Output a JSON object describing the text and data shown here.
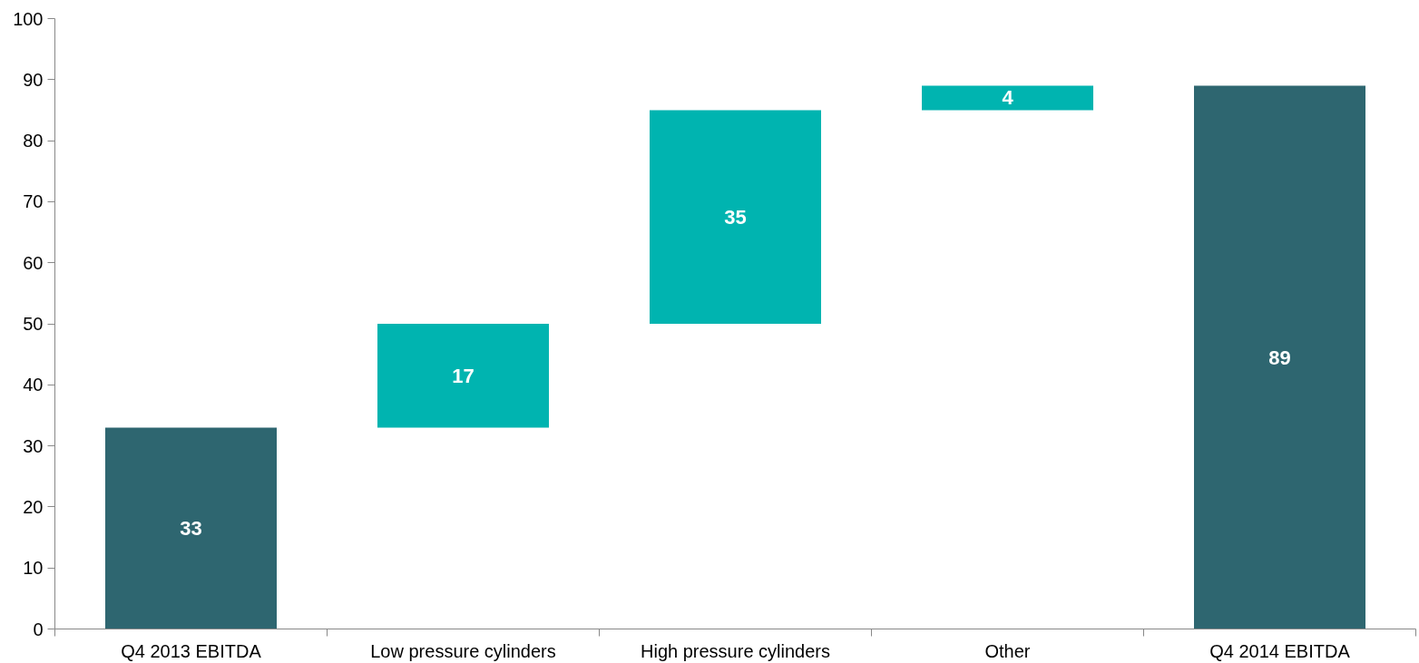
{
  "chart_data": {
    "type": "bar",
    "categories": [
      "Q4 2013 EBITDA",
      "Low pressure cylinders",
      "High pressure cylinders",
      "Other",
      "Q4 2014 EBITDA"
    ],
    "values": [
      33,
      17,
      35,
      4,
      89
    ],
    "base": [
      0,
      33,
      50,
      85,
      0
    ],
    "colors": [
      "#2e6670",
      "#00b4b0",
      "#00b4b0",
      "#00b4b0",
      "#2e6670"
    ],
    "ylim": [
      0,
      100
    ],
    "yticks": [
      0,
      10,
      20,
      30,
      40,
      50,
      60,
      70,
      80,
      90,
      100
    ],
    "data_labels": true,
    "grid": false
  }
}
